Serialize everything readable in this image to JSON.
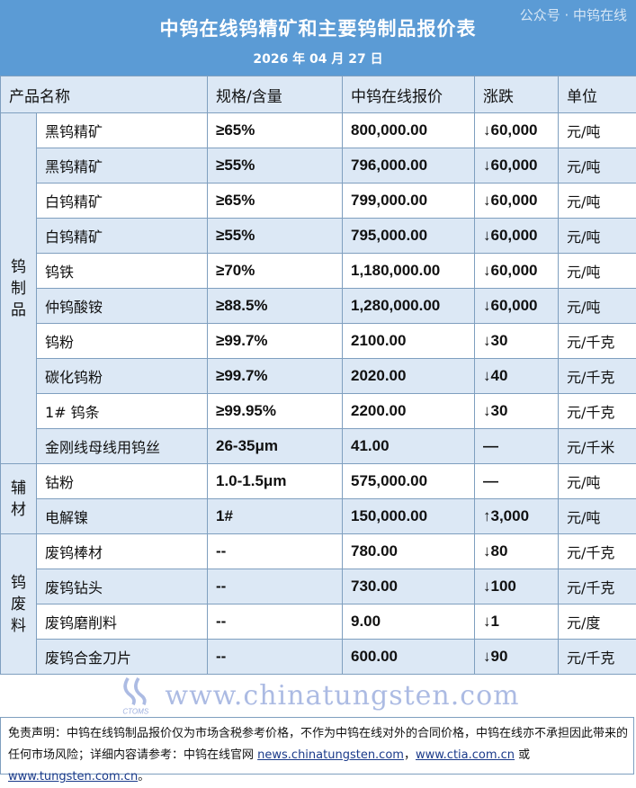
{
  "header": {
    "title": "中钨在线钨精矿和主要钨制品报价表",
    "date": "2026 年 04 月 27 日"
  },
  "columns": [
    "产品名称",
    "规格/含量",
    "中钨在线报价",
    "涨跌",
    "单位"
  ],
  "groups": [
    {
      "label": "钨\n制\n品",
      "rows": [
        {
          "name": "黑钨精矿",
          "spec": "≥65%",
          "price": "800,000.00",
          "change": "↓60,000",
          "unit": "元/吨"
        },
        {
          "name": "黑钨精矿",
          "spec": "≥55%",
          "price": "796,000.00",
          "change": "↓60,000",
          "unit": "元/吨"
        },
        {
          "name": "白钨精矿",
          "spec": "≥65%",
          "price": "799,000.00",
          "change": "↓60,000",
          "unit": "元/吨"
        },
        {
          "name": "白钨精矿",
          "spec": "≥55%",
          "price": "795,000.00",
          "change": "↓60,000",
          "unit": "元/吨"
        },
        {
          "name": "钨铁",
          "spec": "≥70%",
          "price": "1,180,000.00",
          "change": "↓60,000",
          "unit": "元/吨"
        },
        {
          "name": "仲钨酸铵",
          "spec": "≥88.5%",
          "price": "1,280,000.00",
          "change": "↓60,000",
          "unit": "元/吨"
        },
        {
          "name": "钨粉",
          "spec": "≥99.7%",
          "price": "2100.00",
          "change": "↓30",
          "unit": "元/千克"
        },
        {
          "name": "碳化钨粉",
          "spec": "≥99.7%",
          "price": "2020.00",
          "change": "↓40",
          "unit": "元/千克"
        },
        {
          "name": "1#  钨条",
          "spec": "≥99.95%",
          "price": "2200.00",
          "change": "↓30",
          "unit": "元/千克"
        },
        {
          "name": "金刚线母线用钨丝",
          "spec": "26-35μm",
          "price": "41.00",
          "change": "—",
          "unit": "元/千米"
        }
      ]
    },
    {
      "label": "辅\n材",
      "rows": [
        {
          "name": "钴粉",
          "spec": "1.0-1.5μm",
          "price": "575,000.00",
          "change": "—",
          "unit": "元/吨"
        },
        {
          "name": "电解镍",
          "spec": "1#",
          "price": "150,000.00",
          "change": "↑3,000",
          "unit": "元/吨"
        }
      ]
    },
    {
      "label": "钨\n废\n料",
      "rows": [
        {
          "name": "废钨棒材",
          "spec": "--",
          "price": "780.00",
          "change": "↓80",
          "unit": "元/千克"
        },
        {
          "name": "废钨钻头",
          "spec": "--",
          "price": "730.00",
          "change": "↓100",
          "unit": "元/千克"
        },
        {
          "name": "废钨磨削料",
          "spec": "--",
          "price": "9.00",
          "change": "↓1",
          "unit": "元/度"
        },
        {
          "name": "废钨合金刀片",
          "spec": "--",
          "price": "600.00",
          "change": "↓90",
          "unit": "元/千克"
        }
      ]
    }
  ],
  "footer": {
    "text": "免责声明：中钨在线钨制品报价仅为市场含税参考价格，不作为中钨在线对外的合同价格，中钨在线亦不承担因此带来的任何市场风险；详细内容请参考：中钨在线官网 ",
    "link1": "news.chinatungsten.com",
    "sep": "，",
    "link2": "www.ctia.com.cn",
    "or": " 或 ",
    "link3": "www.tungsten.com.cn",
    "end": "。"
  },
  "watermark": {
    "site": "www.chinatungsten.com",
    "logo_text": "CTOMS",
    "wechat": "公众号 · 中钨在线"
  },
  "colors": {
    "title_bg": "#5b9bd5",
    "row_alt": "#dce8f5",
    "border": "#7f9fbf"
  }
}
